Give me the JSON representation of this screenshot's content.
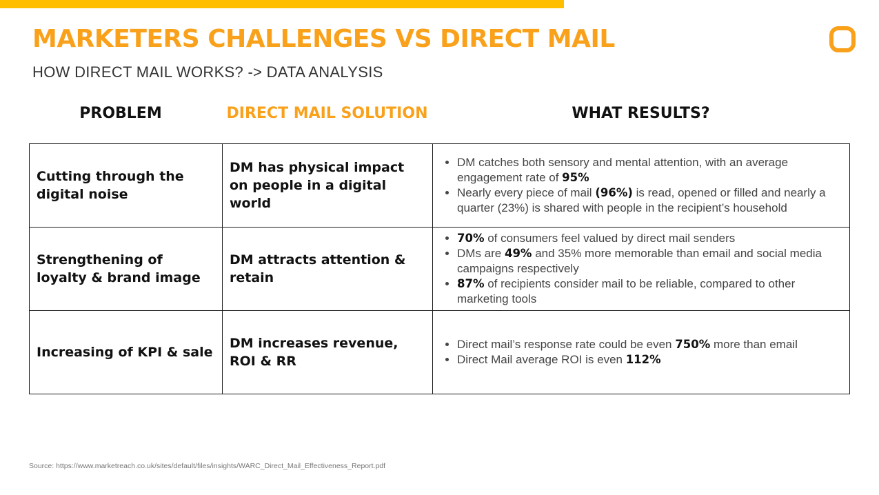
{
  "slide": {
    "title": "MARKETERS CHALLENGES VS DIRECT MAIL",
    "subtitle": "HOW DIRECT MAIL WORKS? -> DATA ANALYSIS",
    "accent_color": "#F9A11B",
    "bar_color": "#FFBF00",
    "logo_icon": "orange-ring-logo"
  },
  "columns": {
    "problem": "PROBLEM",
    "solution": "DIRECT MAIL SOLUTION",
    "results": "WHAT RESULTS?"
  },
  "rows": [
    {
      "problem": "Cutting through the digital noise",
      "solution": "DM has physical impact on people in a digital world",
      "results": [
        [
          {
            "t": "DM catches both sensory and mental attention, with an average engagement rate of "
          },
          {
            "t": "95%",
            "b": true
          }
        ],
        [
          {
            "t": "Nearly every piece of mail "
          },
          {
            "t": "(96%)",
            "b": true
          },
          {
            "t": " is read, opened or filled and nearly a quarter (23%) is shared with people in the recipient’s household"
          }
        ]
      ]
    },
    {
      "problem": "Strengthening of loyalty & brand image",
      "solution": "DM attracts attention & retain",
      "results": [
        [
          {
            "t": "70%",
            "b": true
          },
          {
            "t": " of consumers feel valued by direct mail senders"
          }
        ],
        [
          {
            "t": "DMs are "
          },
          {
            "t": "49%",
            "b": true
          },
          {
            "t": " and 35% more memorable than email and social media campaigns respectively"
          }
        ],
        [
          {
            "t": "87%",
            "b": true
          },
          {
            "t": " of recipients consider mail to be reliable, compared to other marketing tools"
          }
        ]
      ]
    },
    {
      "problem": "Increasing of KPI & sale",
      "solution": "DM increases revenue, ROI & RR",
      "results": [
        [
          {
            "t": "Direct mail’s response rate could be even "
          },
          {
            "t": "750%",
            "b": true
          },
          {
            "t": " more than email"
          }
        ],
        [
          {
            "t": "Direct Mail average ROI is even "
          },
          {
            "t": "112%",
            "b": true
          }
        ]
      ]
    }
  ],
  "source": "Source: https://www.marketreach.co.uk/sites/default/files/insights/WARC_Direct_Mail_Effectiveness_Report.pdf"
}
